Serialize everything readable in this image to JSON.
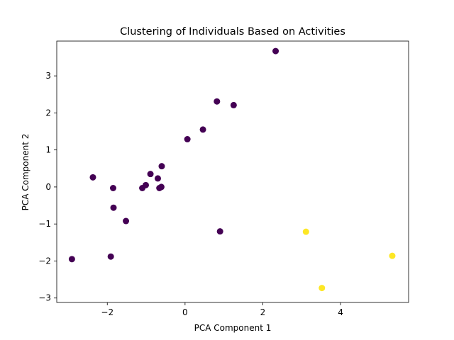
{
  "chart_data": {
    "type": "scatter",
    "title": "Clustering of Individuals Based on Activities",
    "xlabel": "PCA Component 1",
    "ylabel": "PCA Component 2",
    "xlim": [
      -3.3,
      5.75
    ],
    "ylim": [
      -3.12,
      3.94
    ],
    "xticks": [
      -2,
      0,
      2,
      4
    ],
    "yticks": [
      -3,
      -2,
      -1,
      0,
      1,
      2,
      3
    ],
    "xtick_labels": [
      "−2",
      "0",
      "2",
      "4"
    ],
    "ytick_labels": [
      "−3",
      "−2",
      "−1",
      "0",
      "1",
      "2",
      "3"
    ],
    "grid": false,
    "colors": {
      "cluster_0": "#440154",
      "cluster_1": "#fde725"
    },
    "points": [
      {
        "x": 2.33,
        "y": 3.67,
        "cluster": 0
      },
      {
        "x": 0.82,
        "y": 2.31,
        "cluster": 0
      },
      {
        "x": 1.25,
        "y": 2.21,
        "cluster": 0
      },
      {
        "x": 0.46,
        "y": 1.55,
        "cluster": 0
      },
      {
        "x": 0.06,
        "y": 1.29,
        "cluster": 0
      },
      {
        "x": -2.37,
        "y": 0.26,
        "cluster": 0
      },
      {
        "x": -0.89,
        "y": 0.35,
        "cluster": 0
      },
      {
        "x": -0.6,
        "y": 0.56,
        "cluster": 0
      },
      {
        "x": -0.7,
        "y": 0.23,
        "cluster": 0
      },
      {
        "x": -1.01,
        "y": 0.05,
        "cluster": 0
      },
      {
        "x": -1.1,
        "y": -0.03,
        "cluster": 0
      },
      {
        "x": -0.66,
        "y": -0.03,
        "cluster": 0
      },
      {
        "x": -0.61,
        "y": 0.0,
        "cluster": 0
      },
      {
        "x": -1.85,
        "y": -0.03,
        "cluster": 0
      },
      {
        "x": -1.84,
        "y": -0.56,
        "cluster": 0
      },
      {
        "x": -1.52,
        "y": -0.92,
        "cluster": 0
      },
      {
        "x": 0.9,
        "y": -1.2,
        "cluster": 0
      },
      {
        "x": -1.91,
        "y": -1.88,
        "cluster": 0
      },
      {
        "x": -2.91,
        "y": -1.95,
        "cluster": 0
      },
      {
        "x": 3.11,
        "y": -1.21,
        "cluster": 1
      },
      {
        "x": 5.33,
        "y": -1.86,
        "cluster": 1
      },
      {
        "x": 3.52,
        "y": -2.73,
        "cluster": 1
      }
    ]
  }
}
